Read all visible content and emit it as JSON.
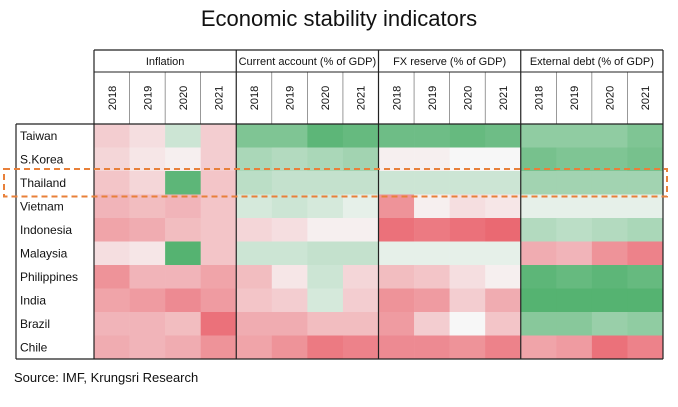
{
  "chart_data": {
    "type": "heatmap",
    "title": "Economic stability indicators",
    "groups": [
      {
        "name": "Inflation",
        "years": [
          "2018",
          "2019",
          "2020",
          "2021"
        ]
      },
      {
        "name": "Current account (% of GDP)",
        "years": [
          "2018",
          "2019",
          "2020",
          "2021"
        ]
      },
      {
        "name": "FX reserve (% of GDP)",
        "years": [
          "2018",
          "2019",
          "2020",
          "2021"
        ]
      },
      {
        "name": "External debt (% of GDP)",
        "years": [
          "2018",
          "2019",
          "2020",
          "2021"
        ]
      }
    ],
    "rows": [
      "Taiwan",
      "S.Korea",
      "Thailand",
      "Vietnam",
      "Indonesia",
      "Malaysia",
      "Philippines",
      "India",
      "Brazil",
      "Chile"
    ],
    "values": [
      [
        -0.25,
        -0.15,
        0.25,
        -0.25,
        0.7,
        0.7,
        0.9,
        0.85,
        0.8,
        0.8,
        0.85,
        0.8,
        0.6,
        0.6,
        0.6,
        0.7
      ],
      [
        -0.2,
        -0.1,
        -0.05,
        -0.25,
        0.45,
        0.4,
        0.45,
        0.5,
        -0.05,
        -0.05,
        0.0,
        0.0,
        0.75,
        0.7,
        0.7,
        0.75
      ],
      [
        -0.3,
        -0.2,
        0.9,
        -0.3,
        0.35,
        0.3,
        0.3,
        0.3,
        0.25,
        0.25,
        0.25,
        0.25,
        0.5,
        0.5,
        0.5,
        0.5
      ],
      [
        -0.4,
        -0.35,
        -0.4,
        -0.3,
        0.2,
        0.25,
        0.2,
        0.1,
        -0.6,
        -0.05,
        -0.15,
        -0.1,
        0.1,
        0.1,
        0.1,
        0.1
      ],
      [
        -0.5,
        -0.45,
        -0.35,
        -0.3,
        -0.2,
        -0.15,
        -0.05,
        -0.05,
        -0.8,
        -0.75,
        -0.8,
        -0.85,
        0.4,
        0.35,
        0.4,
        0.45
      ],
      [
        -0.15,
        -0.1,
        0.95,
        -0.3,
        0.25,
        0.25,
        0.3,
        0.3,
        0.1,
        0.1,
        0.1,
        0.1,
        -0.45,
        -0.4,
        -0.6,
        -0.7
      ],
      [
        -0.6,
        -0.4,
        -0.4,
        -0.5,
        -0.35,
        -0.1,
        0.25,
        -0.2,
        -0.35,
        -0.3,
        -0.15,
        -0.05,
        0.9,
        0.85,
        0.9,
        0.85
      ],
      [
        -0.5,
        -0.55,
        -0.65,
        -0.55,
        -0.3,
        -0.25,
        0.2,
        -0.25,
        -0.6,
        -0.55,
        -0.25,
        -0.45,
        0.95,
        0.95,
        0.95,
        0.95
      ],
      [
        -0.4,
        -0.4,
        -0.35,
        -0.8,
        -0.45,
        -0.45,
        -0.35,
        -0.35,
        -0.55,
        -0.25,
        0.0,
        -0.3,
        0.65,
        0.65,
        0.55,
        0.6
      ],
      [
        -0.45,
        -0.4,
        -0.45,
        -0.6,
        -0.5,
        -0.6,
        -0.75,
        -0.7,
        -0.65,
        -0.65,
        -0.6,
        -0.7,
        -0.5,
        -0.55,
        -0.8,
        -0.7
      ]
    ],
    "color_scale": {
      "negative": "#e8505b",
      "neutral": "#f7f7f7",
      "positive": "#4caf6a"
    },
    "highlight_row": "Thailand",
    "highlight_color": "#e8803a"
  },
  "source": "Source: IMF, Krungsri Research"
}
